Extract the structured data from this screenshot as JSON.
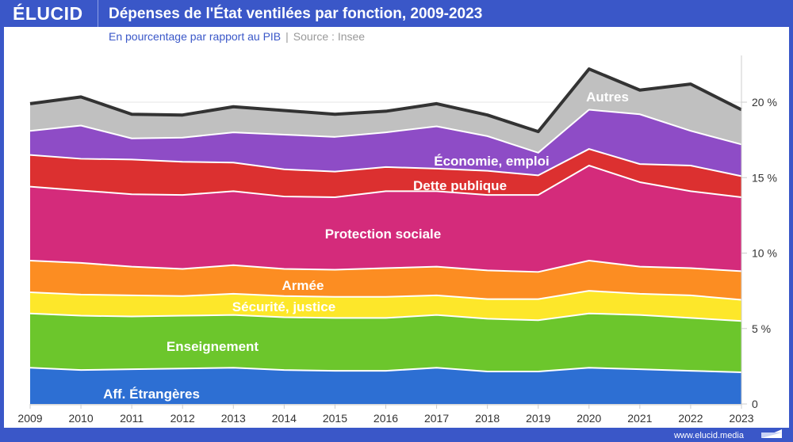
{
  "header": {
    "logo": "ÉLUCID",
    "title": "Dépenses de l'État ventilées par fonction, 2009-2023"
  },
  "subtitle": {
    "text": "En pourcentage par rapport au PIB",
    "source": "Source : Insee"
  },
  "footer": {
    "url": "www.elucid.media"
  },
  "colors": {
    "brand": "#3a57c8"
  },
  "chart_data": {
    "type": "area",
    "stacked": true,
    "title": "Dépenses de l'État ventilées par fonction, 2009-2023",
    "subtitle": "En pourcentage par rapport au PIB",
    "x": [
      "2009",
      "2010",
      "2011",
      "2012",
      "2013",
      "2014",
      "2015",
      "2016",
      "2017",
      "2018",
      "2019",
      "2020",
      "2021",
      "2022",
      "2023"
    ],
    "yticks": [
      "0",
      "5 %",
      "10 %",
      "15 %",
      "20 %"
    ],
    "ylim": [
      0,
      23
    ],
    "y_axis_side": "right",
    "series": [
      {
        "name": "Aff. Étrangères",
        "color": "#2d6fd3",
        "values": [
          2.4,
          2.25,
          2.3,
          2.35,
          2.4,
          2.25,
          2.2,
          2.2,
          2.4,
          2.15,
          2.15,
          2.4,
          2.3,
          2.2,
          2.1
        ]
      },
      {
        "name": "Enseignement",
        "color": "#6cc62c",
        "values": [
          3.6,
          3.6,
          3.5,
          3.5,
          3.5,
          3.5,
          3.5,
          3.5,
          3.5,
          3.5,
          3.4,
          3.6,
          3.6,
          3.5,
          3.4
        ]
      },
      {
        "name": "Sécurité, justice",
        "color": "#fde72a",
        "values": [
          1.4,
          1.4,
          1.4,
          1.3,
          1.4,
          1.4,
          1.4,
          1.4,
          1.3,
          1.3,
          1.4,
          1.5,
          1.4,
          1.5,
          1.4
        ]
      },
      {
        "name": "Armée",
        "color": "#fc8d22",
        "values": [
          2.1,
          2.1,
          1.9,
          1.8,
          1.9,
          1.8,
          1.8,
          1.9,
          1.9,
          1.9,
          1.8,
          2.0,
          1.8,
          1.8,
          1.9
        ]
      },
      {
        "name": "Protection sociale",
        "color": "#d42b7b",
        "values": [
          4.9,
          4.8,
          4.8,
          4.9,
          4.9,
          4.8,
          4.8,
          5.1,
          5.0,
          5.0,
          5.1,
          6.3,
          5.6,
          5.1,
          4.9
        ]
      },
      {
        "name": "Dette publique",
        "color": "#dc3030",
        "values": [
          2.1,
          2.1,
          2.3,
          2.2,
          1.9,
          1.8,
          1.7,
          1.6,
          1.5,
          1.6,
          1.3,
          1.1,
          1.2,
          1.7,
          1.4
        ]
      },
      {
        "name": "Économie, emploi",
        "color": "#8e4cc6",
        "values": [
          1.6,
          2.2,
          1.4,
          1.6,
          2.0,
          2.3,
          2.3,
          2.3,
          2.8,
          2.3,
          1.5,
          2.6,
          3.3,
          2.3,
          2.1
        ]
      },
      {
        "name": "Autres",
        "color": "#c0c0c0",
        "values": [
          1.8,
          1.9,
          1.6,
          1.5,
          1.7,
          1.6,
          1.5,
          1.4,
          1.5,
          1.4,
          1.4,
          2.7,
          1.6,
          3.1,
          2.3
        ]
      }
    ],
    "total_line_color": "#333333"
  }
}
